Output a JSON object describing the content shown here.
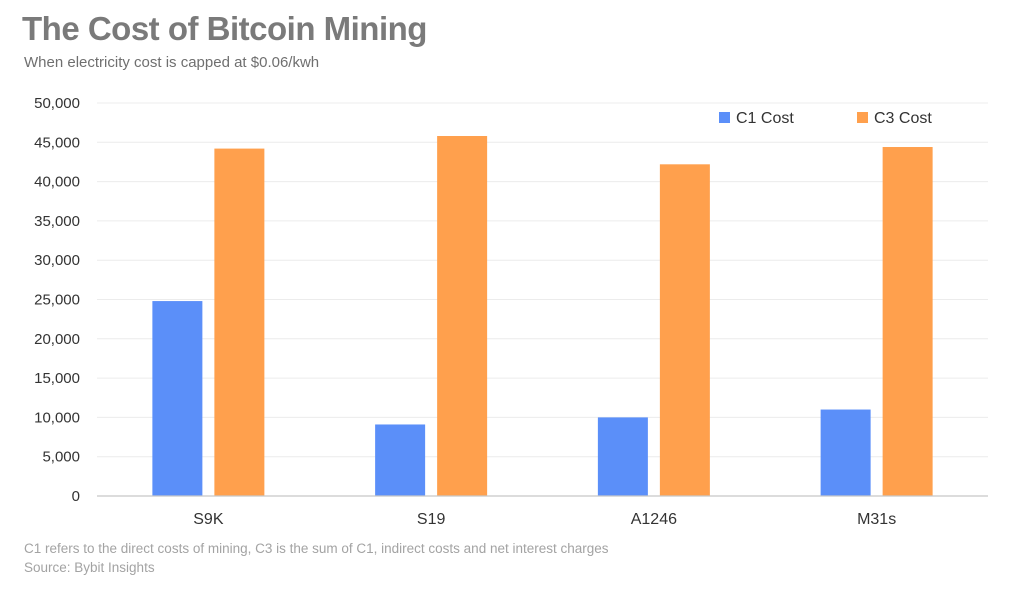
{
  "chart_data": {
    "type": "bar",
    "title": "The Cost of Bitcoin Mining",
    "subtitle": "When electricity cost is capped at $0.06/kwh",
    "categories": [
      "S9K",
      "S19",
      "A1246",
      "M31s"
    ],
    "series": [
      {
        "name": "C1 Cost",
        "color": "#5b8ff9",
        "values": [
          24800,
          9100,
          10000,
          11000
        ]
      },
      {
        "name": "C3 Cost",
        "color": "#ffa04d",
        "values": [
          44200,
          45800,
          42200,
          44400
        ]
      }
    ],
    "ylim": [
      0,
      50000
    ],
    "yticks": [
      0,
      5000,
      10000,
      15000,
      20000,
      25000,
      30000,
      35000,
      40000,
      45000,
      50000
    ],
    "ytick_labels": [
      "0",
      "5,000",
      "10,000",
      "15,000",
      "20,000",
      "25,000",
      "30,000",
      "35,000",
      "40,000",
      "45,000",
      "50,000"
    ],
    "grid": true,
    "legend_position": "top-right",
    "footnote": "C1 refers to the direct costs of mining, C3 is the sum of C1, indirect costs and net interest charges",
    "source": "Source: Bybit Insights"
  }
}
